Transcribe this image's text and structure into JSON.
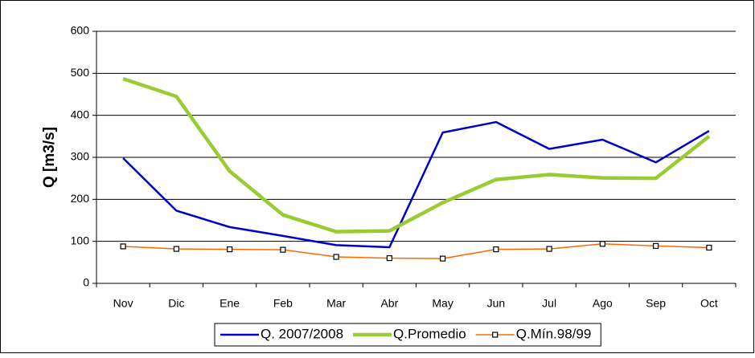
{
  "chart_data": {
    "type": "line",
    "y_label": "Q [m3/s]",
    "categories": [
      "Nov",
      "Dic",
      "Ene",
      "Feb",
      "Mar",
      "Abr",
      "May",
      "Jun",
      "Jul",
      "Ago",
      "Sep",
      "Oct"
    ],
    "series": [
      {
        "name": "Q. 2007/2008",
        "color": "#0000cc",
        "line_width": 2.5,
        "values": [
          298,
          173,
          134,
          113,
          91,
          86,
          359,
          384,
          320,
          342,
          288,
          363
        ]
      },
      {
        "name": "Q.Promedio",
        "color": "#99cc33",
        "line_width": 4.5,
        "values": [
          487,
          445,
          267,
          163,
          123,
          125,
          192,
          247,
          259,
          251,
          250,
          350
        ]
      },
      {
        "name": "Q.Mín.98/99",
        "color": "#ff6600",
        "line_width": 1.5,
        "marker": "square",
        "values": [
          88,
          82,
          81,
          80,
          63,
          60,
          59,
          81,
          82,
          94,
          89,
          85
        ]
      }
    ],
    "ylim": [
      0,
      600
    ],
    "yticks": [
      0,
      100,
      200,
      300,
      400,
      500,
      600
    ],
    "grid": true,
    "legend": "bottom"
  }
}
